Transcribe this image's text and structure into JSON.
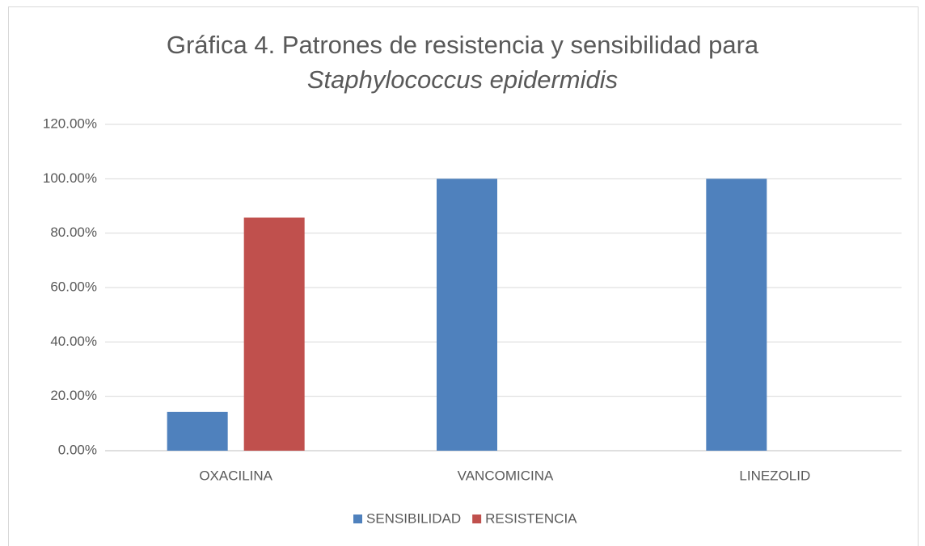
{
  "chart_data": {
    "type": "bar",
    "title": "Gráfica 4. Patrones de resistencia y sensibilidad para",
    "subtitle": "Staphylococcus epidermidis",
    "categories": [
      "OXACILINA",
      "VANCOMICINA",
      "LINEZOLID"
    ],
    "series": [
      {
        "name": "SENSIBILIDAD",
        "color": "#4f81bd",
        "values": [
          14.29,
          100,
          100
        ]
      },
      {
        "name": "RESISTENCIA",
        "color": "#c0504d",
        "values": [
          85.71,
          0,
          0
        ]
      }
    ],
    "ylim": [
      0,
      120
    ],
    "yticks": [
      {
        "value": 0,
        "label": "0.00%"
      },
      {
        "value": 20,
        "label": "20.00%"
      },
      {
        "value": 40,
        "label": "40.00%"
      },
      {
        "value": 60,
        "label": "60.00%"
      },
      {
        "value": 80,
        "label": "80.00%"
      },
      {
        "value": 100,
        "label": "100.00%"
      },
      {
        "value": 120,
        "label": "120.00%"
      }
    ],
    "grid": true,
    "legend": "bottom"
  }
}
